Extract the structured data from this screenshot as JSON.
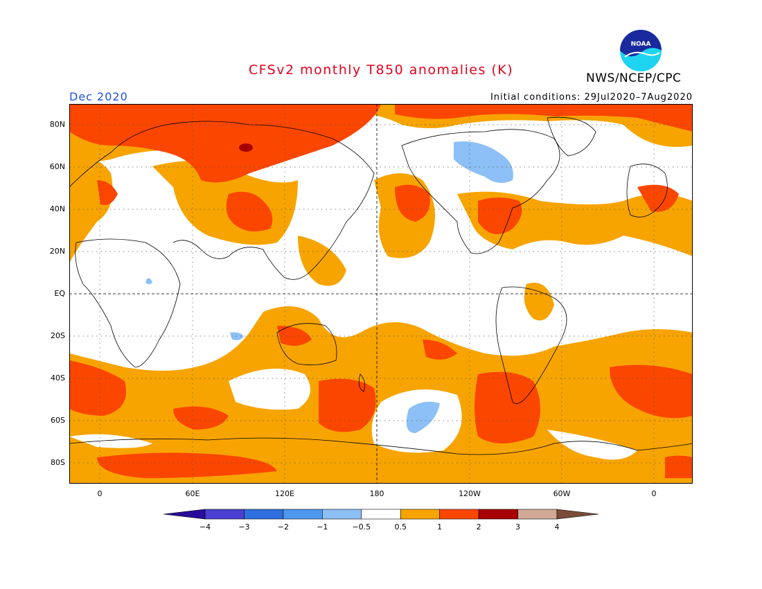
{
  "header": {
    "title": "CFSv2 monthly T850 anomalies (K)",
    "org": "NWS/NCEP/CPC",
    "month": "Dec 2020",
    "initial_conditions": "Initial conditions: 29Jul2020–7Aug2020",
    "logo_text": "NOAA"
  },
  "axes": {
    "lat_labels": [
      "80N",
      "60N",
      "40N",
      "20N",
      "EQ",
      "20S",
      "40S",
      "60S",
      "80S"
    ],
    "lon_labels": [
      "0",
      "60E",
      "120E",
      "180",
      "120W",
      "60W",
      "0"
    ]
  },
  "colorbar": {
    "labels": [
      "−4",
      "−3",
      "−2",
      "−1",
      "−0.5",
      "0.5",
      "1",
      "2",
      "3",
      "4"
    ],
    "colors": [
      "#2a0c9c",
      "#4a3fd0",
      "#2f6fe0",
      "#4e98ee",
      "#8cc0f6",
      "#ffffff",
      "#f7a400",
      "#fb4600",
      "#a80000",
      "#d1a996",
      "#7a4b38"
    ]
  },
  "colors": {
    "neutral": "#ffffff",
    "warm1": "#f7a400",
    "warm2": "#fb4600",
    "warm3": "#a80000",
    "cool1": "#8cc0f6",
    "title": "#e4001b",
    "month": "#1f4fd8"
  }
}
